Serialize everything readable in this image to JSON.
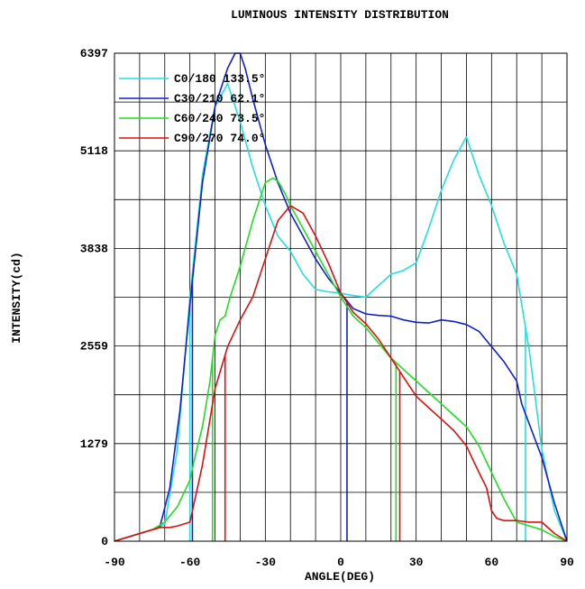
{
  "chart_data": {
    "type": "line",
    "title": "LUMINOUS INTENSITY DISTRIBUTION",
    "xlabel": "ANGLE(DEG)",
    "ylabel": "INTENSITY(cd)",
    "xlim": [
      -90,
      90
    ],
    "ylim": [
      0,
      6397
    ],
    "xticks": [
      "-90",
      "-60",
      "-30",
      "0",
      "30",
      "60",
      "90"
    ],
    "yticks": [
      "0",
      "1279",
      "2559",
      "3838",
      "5118",
      "6397"
    ],
    "grid": true,
    "legend_position": "top-left",
    "series": [
      {
        "name": "C0/180 133.5°",
        "color": "#22e0e0",
        "x": [
          -90,
          -75,
          -70,
          -65,
          -60,
          -55,
          -50,
          -45,
          -40,
          -35,
          -30,
          -25,
          -20,
          -15,
          -10,
          -5,
          0,
          5,
          10,
          15,
          20,
          25,
          30,
          35,
          40,
          45,
          50,
          55,
          60,
          65,
          70,
          75,
          80,
          85,
          90
        ],
        "y": [
          0,
          150,
          220,
          1200,
          3200,
          4800,
          5700,
          6000,
          5500,
          4900,
          4400,
          4000,
          3800,
          3500,
          3300,
          3270,
          3250,
          3220,
          3200,
          3350,
          3500,
          3550,
          3650,
          4100,
          4600,
          5000,
          5300,
          4800,
          4400,
          3900,
          3500,
          2500,
          1200,
          400,
          0
        ],
        "cutoffs": [
          -60,
          73.5
        ]
      },
      {
        "name": "C30/210 62.1°",
        "color": "#1020c8",
        "x": [
          -90,
          -80,
          -72,
          -68,
          -64,
          -60,
          -55,
          -50,
          -45,
          -42,
          -40,
          -38,
          -35,
          -30,
          -25,
          -20,
          -15,
          -10,
          -5,
          0,
          5,
          10,
          15,
          20,
          25,
          30,
          35,
          40,
          45,
          50,
          55,
          60,
          65,
          70,
          72,
          80,
          85,
          90
        ],
        "y": [
          0,
          100,
          180,
          700,
          1700,
          3100,
          4700,
          5700,
          6200,
          6397,
          6397,
          6200,
          5800,
          5200,
          4700,
          4300,
          4000,
          3700,
          3450,
          3250,
          3050,
          2980,
          2960,
          2950,
          2900,
          2870,
          2860,
          2900,
          2880,
          2840,
          2750,
          2550,
          2350,
          2100,
          1800,
          1100,
          500,
          0
        ],
        "cutoffs": [
          -59,
          2.5
        ]
      },
      {
        "name": "C60/240 73.5°",
        "color": "#22dd22",
        "x": [
          -90,
          -75,
          -70,
          -65,
          -60,
          -58,
          -55,
          -52,
          -50,
          -48,
          -46,
          -44,
          -40,
          -35,
          -30,
          -27,
          -25,
          -22,
          -20,
          -15,
          -10,
          -5,
          0,
          5,
          10,
          15,
          20,
          25,
          30,
          35,
          40,
          45,
          50,
          55,
          60,
          65,
          70,
          75,
          80,
          85,
          90
        ],
        "y": [
          0,
          150,
          250,
          450,
          800,
          1100,
          1500,
          2100,
          2700,
          2900,
          2950,
          3200,
          3600,
          4200,
          4700,
          4760,
          4720,
          4550,
          4400,
          4100,
          3800,
          3500,
          3200,
          2950,
          2800,
          2600,
          2400,
          2250,
          2100,
          1950,
          1800,
          1650,
          1500,
          1250,
          900,
          550,
          250,
          200,
          150,
          60,
          0
        ],
        "cutoffs": [
          -51,
          22
        ]
      },
      {
        "name": "C90/270 74.0°",
        "color": "#dd1010",
        "x": [
          -90,
          -80,
          -72,
          -68,
          -65,
          -60,
          -55,
          -50,
          -45,
          -40,
          -35,
          -30,
          -25,
          -20,
          -15,
          -10,
          -5,
          0,
          5,
          10,
          15,
          20,
          25,
          30,
          35,
          40,
          45,
          50,
          55,
          58,
          60,
          62,
          65,
          70,
          75,
          80,
          85,
          90
        ],
        "y": [
          0,
          100,
          180,
          180,
          200,
          250,
          1000,
          2000,
          2550,
          2900,
          3200,
          3700,
          4200,
          4400,
          4300,
          4000,
          3650,
          3250,
          3000,
          2850,
          2650,
          2400,
          2150,
          1900,
          1750,
          1600,
          1450,
          1250,
          900,
          700,
          400,
          300,
          270,
          270,
          250,
          250,
          100,
          0
        ],
        "cutoffs": [
          -46,
          23.5
        ]
      }
    ]
  }
}
